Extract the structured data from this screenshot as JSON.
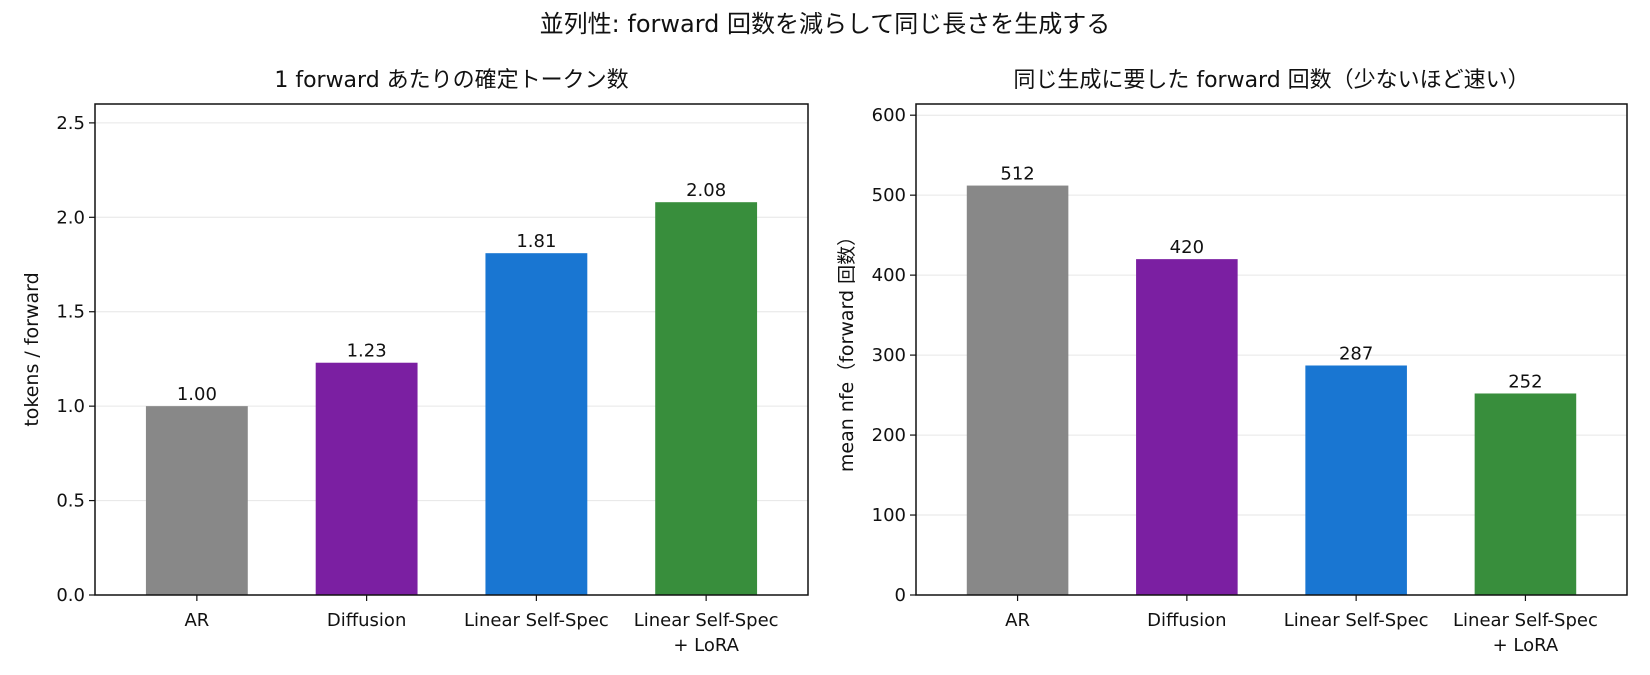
{
  "figure": {
    "title": "並列性: forward 回数を減らして同じ長さを生成する"
  },
  "chart_data": [
    {
      "type": "bar",
      "title": "1 forward あたりの確定トークン数",
      "ylabel": "tokens / forward",
      "xlabel": "",
      "categories": [
        [
          "AR"
        ],
        [
          "Diffusion"
        ],
        [
          "Linear Self-Spec"
        ],
        [
          "Linear Self-Spec",
          "+ LoRA"
        ]
      ],
      "values": [
        1.0,
        1.23,
        1.81,
        2.08
      ],
      "value_labels": [
        "1.00",
        "1.23",
        "1.81",
        "2.08"
      ],
      "colors": [
        "#888888",
        "#7b1fa2",
        "#1976d2",
        "#388e3c"
      ],
      "ylim": [
        0,
        2.6
      ],
      "yticks": [
        0.0,
        0.5,
        1.0,
        1.5,
        2.0,
        2.5
      ],
      "ytick_labels": [
        "0.0",
        "0.5",
        "1.0",
        "1.5",
        "2.0",
        "2.5"
      ],
      "grid": "y",
      "legend": "none"
    },
    {
      "type": "bar",
      "title": "同じ生成に要した forward 回数（少ないほど速い）",
      "ylabel": "mean nfe（forward 回数）",
      "xlabel": "",
      "categories": [
        [
          "AR"
        ],
        [
          "Diffusion"
        ],
        [
          "Linear Self-Spec"
        ],
        [
          "Linear Self-Spec",
          "+ LoRA"
        ]
      ],
      "values": [
        512,
        420,
        287,
        252
      ],
      "value_labels": [
        "512",
        "420",
        "287",
        "252"
      ],
      "colors": [
        "#888888",
        "#7b1fa2",
        "#1976d2",
        "#388e3c"
      ],
      "ylim": [
        0,
        614
      ],
      "yticks": [
        0,
        100,
        200,
        300,
        400,
        500,
        600
      ],
      "ytick_labels": [
        "0",
        "100",
        "200",
        "300",
        "400",
        "500",
        "600"
      ],
      "grid": "y",
      "legend": "none"
    }
  ]
}
